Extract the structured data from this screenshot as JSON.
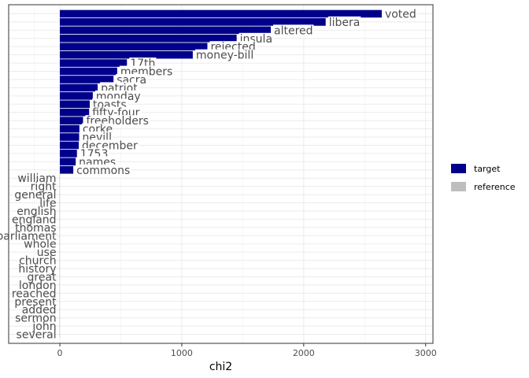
{
  "chart_data": {
    "type": "bar",
    "orientation": "horizontal",
    "xlabel": "chi2",
    "ylabel": "",
    "xlim": [
      -420,
      3060
    ],
    "xticks": [
      0,
      1000,
      2000,
      3000
    ],
    "grid": true,
    "legend_position": "right",
    "legend": [
      {
        "name": "target",
        "color": "#00008b"
      },
      {
        "name": "reference",
        "color": "#bebebe"
      }
    ],
    "bars": [
      {
        "label": "voted",
        "value": 2640,
        "group": "target"
      },
      {
        "label": "libera",
        "value": 2180,
        "group": "target"
      },
      {
        "label": "altered",
        "value": 1730,
        "group": "target"
      },
      {
        "label": "insula",
        "value": 1450,
        "group": "target"
      },
      {
        "label": "rejected",
        "value": 1210,
        "group": "target"
      },
      {
        "label": "money-bill",
        "value": 1090,
        "group": "target"
      },
      {
        "label": "17th",
        "value": 550,
        "group": "target"
      },
      {
        "label": "members",
        "value": 470,
        "group": "target"
      },
      {
        "label": "sacra",
        "value": 440,
        "group": "target"
      },
      {
        "label": "patriot",
        "value": 310,
        "group": "target"
      },
      {
        "label": "monday",
        "value": 270,
        "group": "target"
      },
      {
        "label": "toasts",
        "value": 245,
        "group": "target"
      },
      {
        "label": "fifty-four",
        "value": 240,
        "group": "target"
      },
      {
        "label": "freeholders",
        "value": 190,
        "group": "target"
      },
      {
        "label": "corke",
        "value": 160,
        "group": "target"
      },
      {
        "label": "nevill",
        "value": 158,
        "group": "target"
      },
      {
        "label": "december",
        "value": 155,
        "group": "target"
      },
      {
        "label": "1753",
        "value": 140,
        "group": "target"
      },
      {
        "label": "names",
        "value": 130,
        "group": "target"
      },
      {
        "label": "commons",
        "value": 110,
        "group": "target"
      },
      {
        "label": "william",
        "value": -3,
        "group": "reference"
      },
      {
        "label": "right",
        "value": -3,
        "group": "reference"
      },
      {
        "label": "general",
        "value": -3,
        "group": "reference"
      },
      {
        "label": "life",
        "value": -3,
        "group": "reference"
      },
      {
        "label": "english",
        "value": -3,
        "group": "reference"
      },
      {
        "label": "england",
        "value": -3,
        "group": "reference"
      },
      {
        "label": "thomas",
        "value": -3,
        "group": "reference"
      },
      {
        "label": "parliament",
        "value": -3,
        "group": "reference"
      },
      {
        "label": "whole",
        "value": -3,
        "group": "reference"
      },
      {
        "label": "use",
        "value": -3,
        "group": "reference"
      },
      {
        "label": "church",
        "value": -3,
        "group": "reference"
      },
      {
        "label": "history",
        "value": -3,
        "group": "reference"
      },
      {
        "label": "great",
        "value": -3,
        "group": "reference"
      },
      {
        "label": "london",
        "value": -3,
        "group": "reference"
      },
      {
        "label": "reached",
        "value": -3,
        "group": "reference"
      },
      {
        "label": "present",
        "value": -3,
        "group": "reference"
      },
      {
        "label": "added",
        "value": -3,
        "group": "reference"
      },
      {
        "label": "sermon",
        "value": -3,
        "group": "reference"
      },
      {
        "label": "john",
        "value": -3,
        "group": "reference"
      },
      {
        "label": "several",
        "value": -3,
        "group": "reference"
      }
    ]
  }
}
